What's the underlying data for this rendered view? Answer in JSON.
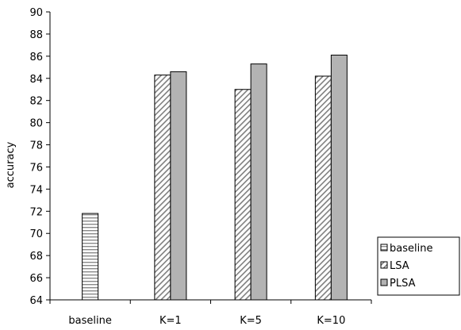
{
  "chart_data": {
    "type": "bar",
    "title": "",
    "xlabel": "",
    "ylabel": "accuracy",
    "ylim": [
      64,
      90
    ],
    "ytick_step": 2,
    "yticks": [
      "64",
      "66",
      "68",
      "70",
      "72",
      "74",
      "76",
      "78",
      "80",
      "82",
      "84",
      "86",
      "88",
      "90"
    ],
    "categories": [
      "baseline",
      "K=1",
      "K=5",
      "K=10"
    ],
    "series": [
      {
        "name": "baseline",
        "values": [
          71.8,
          null,
          null,
          null
        ],
        "pattern": "horizontal-lines"
      },
      {
        "name": "LSA",
        "values": [
          null,
          84.3,
          83.0,
          84.2
        ],
        "pattern": "diagonal-lines"
      },
      {
        "name": "PLSA",
        "values": [
          null,
          84.6,
          85.3,
          86.1
        ],
        "pattern": "solid-gray"
      }
    ],
    "grid": false,
    "legend_position": "right-bottom",
    "colors": {
      "bar_fill_solid": "#b3b3b3",
      "stroke": "#000000",
      "hatch": "#7f7f7f"
    }
  }
}
